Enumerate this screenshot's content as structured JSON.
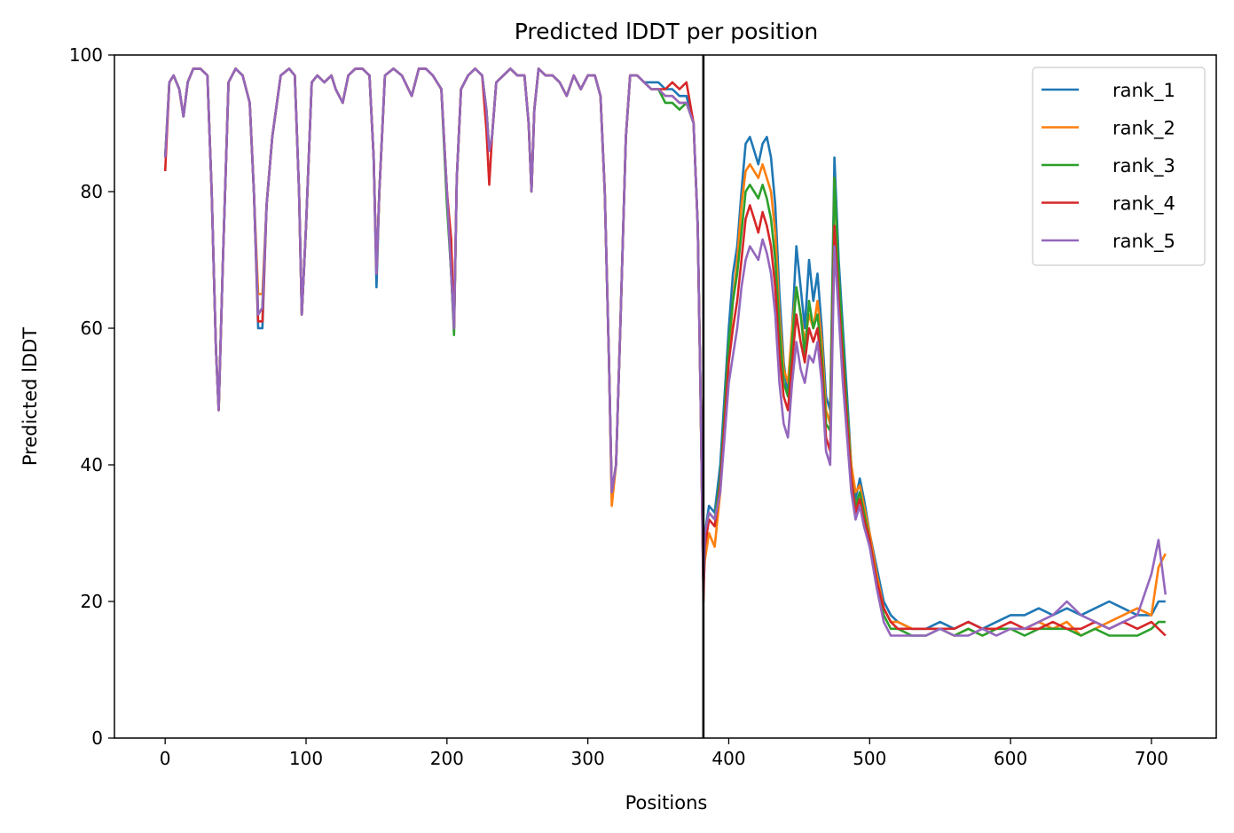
{
  "chart_data": {
    "type": "line",
    "title": "Predicted lDDT per position",
    "xlabel": "Positions",
    "ylabel": "Predicted lDDT",
    "xlim": [
      -36,
      746
    ],
    "ylim": [
      0,
      100
    ],
    "xticks": [
      0,
      100,
      200,
      300,
      400,
      500,
      600,
      700
    ],
    "yticks": [
      0,
      20,
      40,
      60,
      80,
      100
    ],
    "grid": false,
    "legend_position": "top-right",
    "vline_x": 382,
    "vline_color": "#000000",
    "base_profile": {
      "x": [
        0,
        3,
        6,
        10,
        13,
        16,
        20,
        25,
        30,
        33,
        36,
        38,
        41,
        45,
        50,
        55,
        60,
        63,
        66,
        69,
        72,
        76,
        82,
        88,
        92,
        95,
        97,
        100,
        104,
        108,
        113,
        118,
        121,
        126,
        130,
        135,
        140,
        145,
        148,
        150,
        152,
        156,
        162,
        168,
        175,
        180,
        185,
        190,
        196,
        200,
        203,
        205,
        207,
        210,
        215,
        220,
        225,
        228,
        230,
        232,
        235,
        240,
        245,
        250,
        255,
        258,
        260,
        262,
        265,
        270,
        275,
        280,
        285,
        290,
        295,
        300,
        305,
        309,
        312,
        315,
        317,
        320,
        323,
        327,
        330,
        335,
        340,
        345,
        350,
        355,
        360,
        365,
        370,
        375,
        378,
        380,
        382
      ],
      "y": [
        85,
        96,
        97,
        95,
        91,
        96,
        98,
        98,
        97,
        80,
        57,
        48,
        70,
        96,
        98,
        97,
        93,
        80,
        62,
        63,
        78,
        88,
        97,
        98,
        97,
        80,
        62,
        75,
        96,
        97,
        96,
        97,
        95,
        93,
        97,
        98,
        98,
        97,
        85,
        68,
        80,
        97,
        98,
        97,
        94,
        98,
        98,
        97,
        95,
        80,
        68,
        60,
        82,
        95,
        97,
        98,
        97,
        92,
        86,
        88,
        96,
        97,
        98,
        97,
        97,
        90,
        80,
        92,
        98,
        97,
        97,
        96,
        94,
        97,
        95,
        97,
        97,
        94,
        80,
        55,
        36,
        40,
        60,
        88,
        97,
        97,
        96,
        95,
        95,
        94,
        94,
        93,
        93,
        90,
        75,
        50,
        22
      ]
    },
    "series": [
      {
        "name": "rank_1",
        "color": "#1f77b4",
        "x": [
          383,
          386,
          390,
          394,
          397,
          400,
          403,
          406,
          409,
          412,
          415,
          418,
          421,
          424,
          427,
          430,
          433,
          436,
          439,
          442,
          445,
          448,
          451,
          454,
          457,
          460,
          463,
          466,
          469,
          472,
          475,
          478,
          481,
          484,
          487,
          490,
          493,
          496,
          500,
          505,
          510,
          515,
          520,
          530,
          540,
          550,
          560,
          570,
          580,
          590,
          600,
          610,
          620,
          630,
          640,
          650,
          660,
          670,
          680,
          690,
          700,
          705,
          710
        ],
        "y": [
          30,
          34,
          33,
          40,
          50,
          60,
          68,
          72,
          80,
          87,
          88,
          86,
          84,
          87,
          88,
          85,
          78,
          65,
          55,
          50,
          60,
          72,
          66,
          60,
          70,
          64,
          68,
          60,
          50,
          48,
          85,
          70,
          60,
          50,
          40,
          35,
          38,
          35,
          30,
          25,
          20,
          18,
          17,
          16,
          16,
          17,
          16,
          17,
          16,
          17,
          18,
          18,
          19,
          18,
          19,
          18,
          19,
          20,
          19,
          18,
          18,
          20,
          20
        ]
      },
      {
        "name": "rank_2",
        "color": "#ff7f0e",
        "x": [
          383,
          386,
          390,
          394,
          397,
          400,
          403,
          406,
          409,
          412,
          415,
          418,
          421,
          424,
          427,
          430,
          433,
          436,
          439,
          442,
          445,
          448,
          451,
          454,
          457,
          460,
          463,
          466,
          469,
          472,
          475,
          478,
          481,
          484,
          487,
          490,
          493,
          496,
          500,
          505,
          510,
          515,
          520,
          530,
          540,
          550,
          560,
          570,
          580,
          590,
          600,
          610,
          620,
          630,
          640,
          650,
          660,
          670,
          680,
          690,
          700,
          705,
          710
        ],
        "y": [
          26,
          30,
          28,
          36,
          46,
          56,
          64,
          70,
          78,
          83,
          84,
          83,
          82,
          84,
          82,
          80,
          74,
          62,
          54,
          52,
          60,
          66,
          62,
          58,
          62,
          60,
          64,
          58,
          48,
          46,
          82,
          66,
          56,
          48,
          40,
          36,
          37,
          34,
          30,
          24,
          19,
          17,
          17,
          16,
          16,
          16,
          15,
          16,
          15,
          16,
          16,
          16,
          17,
          16,
          17,
          15,
          16,
          17,
          18,
          19,
          18,
          25,
          27
        ]
      },
      {
        "name": "rank_3",
        "color": "#2ca02c",
        "x": [
          383,
          386,
          390,
          394,
          397,
          400,
          403,
          406,
          409,
          412,
          415,
          418,
          421,
          424,
          427,
          430,
          433,
          436,
          439,
          442,
          445,
          448,
          451,
          454,
          457,
          460,
          463,
          466,
          469,
          472,
          475,
          478,
          481,
          484,
          487,
          490,
          493,
          496,
          500,
          505,
          510,
          515,
          520,
          530,
          540,
          550,
          560,
          570,
          580,
          590,
          600,
          610,
          620,
          630,
          640,
          650,
          660,
          670,
          680,
          690,
          700,
          705,
          710
        ],
        "y": [
          30,
          33,
          32,
          38,
          48,
          58,
          64,
          68,
          74,
          80,
          81,
          80,
          79,
          81,
          79,
          76,
          70,
          60,
          52,
          50,
          58,
          66,
          62,
          56,
          64,
          60,
          62,
          56,
          46,
          45,
          82,
          68,
          58,
          48,
          38,
          34,
          36,
          33,
          29,
          23,
          18,
          16,
          16,
          15,
          15,
          16,
          15,
          16,
          15,
          16,
          16,
          15,
          16,
          16,
          16,
          15,
          16,
          15,
          15,
          15,
          16,
          17,
          17
        ]
      },
      {
        "name": "rank_4",
        "color": "#d62728",
        "x": [
          383,
          386,
          390,
          394,
          397,
          400,
          403,
          406,
          409,
          412,
          415,
          418,
          421,
          424,
          427,
          430,
          433,
          436,
          439,
          442,
          445,
          448,
          451,
          454,
          457,
          460,
          463,
          466,
          469,
          472,
          475,
          478,
          481,
          484,
          487,
          490,
          493,
          496,
          500,
          505,
          510,
          515,
          520,
          530,
          540,
          550,
          560,
          570,
          580,
          590,
          600,
          610,
          620,
          630,
          640,
          650,
          660,
          670,
          680,
          690,
          700,
          705,
          710
        ],
        "y": [
          28,
          32,
          31,
          37,
          46,
          55,
          60,
          64,
          70,
          76,
          78,
          76,
          74,
          77,
          75,
          72,
          66,
          56,
          50,
          48,
          55,
          62,
          58,
          55,
          60,
          58,
          60,
          54,
          44,
          42,
          75,
          64,
          55,
          46,
          38,
          33,
          35,
          32,
          29,
          23,
          19,
          17,
          16,
          16,
          16,
          16,
          16,
          17,
          16,
          16,
          17,
          16,
          16,
          17,
          16,
          16,
          17,
          16,
          17,
          16,
          17,
          16,
          15
        ]
      },
      {
        "name": "rank_5",
        "color": "#9467bd",
        "x": [
          383,
          386,
          390,
          394,
          397,
          400,
          403,
          406,
          409,
          412,
          415,
          418,
          421,
          424,
          427,
          430,
          433,
          436,
          439,
          442,
          445,
          448,
          451,
          454,
          457,
          460,
          463,
          466,
          469,
          472,
          475,
          478,
          481,
          484,
          487,
          490,
          493,
          496,
          500,
          505,
          510,
          515,
          520,
          530,
          540,
          550,
          560,
          570,
          580,
          590,
          600,
          610,
          620,
          630,
          640,
          650,
          660,
          670,
          680,
          690,
          700,
          705,
          710
        ],
        "y": [
          30,
          33,
          32,
          36,
          44,
          52,
          56,
          60,
          66,
          70,
          72,
          71,
          70,
          73,
          71,
          68,
          62,
          52,
          46,
          44,
          52,
          58,
          54,
          52,
          56,
          55,
          58,
          52,
          42,
          40,
          72,
          62,
          52,
          44,
          36,
          32,
          34,
          31,
          28,
          22,
          17,
          15,
          15,
          15,
          15,
          16,
          15,
          15,
          16,
          15,
          16,
          16,
          17,
          18,
          20,
          18,
          17,
          16,
          17,
          18,
          24,
          29,
          21
        ]
      }
    ],
    "prefix_offsets": {
      "rank_1": [
        0,
        0,
        0,
        0,
        0,
        0,
        0,
        0,
        0,
        0,
        0,
        0,
        0,
        0,
        0,
        0,
        0,
        0,
        -2,
        -3,
        0,
        0,
        0,
        0,
        0,
        0,
        0,
        0,
        0,
        0,
        0,
        0,
        0,
        0,
        0,
        0,
        0,
        0,
        0,
        -2,
        0,
        0,
        0,
        0,
        0,
        0,
        0,
        0,
        0,
        0,
        0,
        0,
        0,
        0,
        0,
        0,
        0,
        0,
        0,
        0,
        0,
        0,
        0,
        0,
        0,
        0,
        0,
        0,
        0,
        0,
        0,
        0,
        0,
        0,
        0,
        0,
        0,
        0,
        0,
        0,
        0,
        0,
        0,
        0,
        0,
        0,
        0,
        1,
        1,
        1,
        1,
        1,
        1,
        0,
        0,
        0,
        0
      ],
      "rank_2": [
        0,
        0,
        0,
        0,
        0,
        0,
        0,
        0,
        0,
        0,
        0,
        0,
        0,
        0,
        0,
        0,
        0,
        0,
        3,
        2,
        0,
        0,
        0,
        0,
        0,
        0,
        0,
        0,
        0,
        0,
        0,
        0,
        0,
        0,
        0,
        0,
        0,
        0,
        0,
        0,
        0,
        0,
        0,
        0,
        0,
        0,
        0,
        0,
        0,
        0,
        0,
        0,
        0,
        0,
        0,
        0,
        0,
        0,
        0,
        0,
        0,
        0,
        0,
        0,
        0,
        0,
        0,
        0,
        0,
        0,
        0,
        0,
        0,
        0,
        0,
        0,
        0,
        0,
        0,
        0,
        -2,
        0,
        0,
        0,
        0,
        0,
        0,
        0,
        0,
        0,
        0,
        0,
        0,
        0,
        0,
        0,
        0
      ],
      "rank_3": [
        0,
        0,
        0,
        0,
        0,
        0,
        0,
        0,
        0,
        0,
        0,
        0,
        0,
        0,
        0,
        0,
        0,
        0,
        0,
        0,
        0,
        0,
        0,
        0,
        0,
        0,
        0,
        0,
        0,
        0,
        0,
        0,
        0,
        0,
        0,
        0,
        0,
        0,
        0,
        0,
        0,
        0,
        0,
        0,
        0,
        0,
        0,
        0,
        0,
        -2,
        0,
        -1,
        0,
        0,
        0,
        0,
        0,
        0,
        0,
        0,
        0,
        0,
        0,
        0,
        0,
        0,
        0,
        0,
        0,
        0,
        0,
        0,
        0,
        0,
        0,
        0,
        0,
        0,
        0,
        0,
        0,
        0,
        0,
        0,
        0,
        0,
        0,
        0,
        0,
        -1,
        -1,
        -1,
        0,
        0,
        0,
        0,
        0
      ],
      "rank_4": [
        -2,
        0,
        0,
        0,
        0,
        0,
        0,
        0,
        0,
        0,
        0,
        0,
        0,
        0,
        0,
        0,
        0,
        0,
        -1,
        -2,
        0,
        0,
        0,
        0,
        0,
        0,
        0,
        0,
        0,
        0,
        0,
        0,
        0,
        0,
        0,
        0,
        0,
        0,
        0,
        0,
        0,
        0,
        0,
        0,
        0,
        0,
        0,
        0,
        0,
        0,
        5,
        0,
        0,
        0,
        0,
        0,
        0,
        -3,
        -5,
        0,
        0,
        0,
        0,
        0,
        0,
        0,
        0,
        0,
        0,
        0,
        0,
        0,
        0,
        0,
        0,
        0,
        0,
        0,
        0,
        0,
        0,
        0,
        0,
        0,
        0,
        0,
        0,
        0,
        0,
        1,
        2,
        2,
        3,
        0,
        0,
        0,
        -2
      ],
      "rank_5": [
        0,
        0,
        0,
        0,
        0,
        0,
        0,
        0,
        0,
        0,
        0,
        0,
        0,
        0,
        0,
        0,
        0,
        0,
        0,
        0,
        0,
        0,
        0,
        0,
        0,
        0,
        0,
        0,
        0,
        0,
        0,
        0,
        0,
        0,
        0,
        0,
        0,
        0,
        0,
        0,
        0,
        0,
        0,
        0,
        0,
        0,
        0,
        0,
        0,
        0,
        0,
        0,
        0,
        0,
        0,
        0,
        0,
        0,
        0,
        0,
        0,
        0,
        0,
        0,
        0,
        0,
        0,
        0,
        0,
        0,
        0,
        0,
        0,
        0,
        0,
        0,
        0,
        0,
        0,
        0,
        0,
        0,
        0,
        0,
        0,
        0,
        0,
        0,
        0,
        0,
        0,
        0,
        0,
        0,
        0,
        0,
        0
      ]
    }
  }
}
